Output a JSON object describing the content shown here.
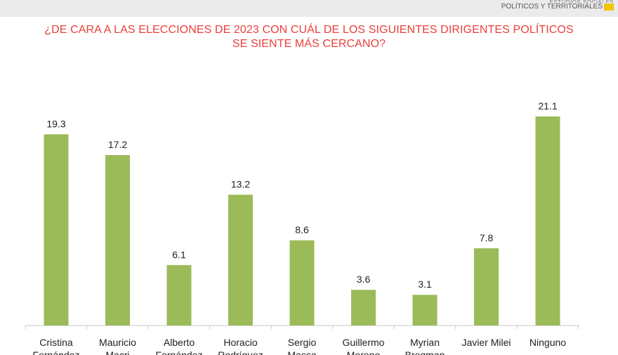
{
  "header": {
    "brand_top": "ESTUDIOS SOCIALES",
    "brand_main": "POLÍTICOS Y TERRITORIALES",
    "brand_color": "#f3c300"
  },
  "chart_data": {
    "type": "bar",
    "title_lines": [
      "¿DE CARA A LAS ELECCIONES DE 2023 CON CUÁL DE LOS SIGUIENTES DIRIGENTES POLÍTICOS",
      "SE SIENTE MÁS CERCANO?"
    ],
    "categories": [
      [
        "Cristina",
        "Fernández"
      ],
      [
        "Mauricio",
        "Macri"
      ],
      [
        "Alberto",
        "Fernández"
      ],
      [
        "Horacio",
        "Rodríguez"
      ],
      [
        "Sergio",
        "Massa"
      ],
      [
        "Guillermo",
        "Moreno"
      ],
      [
        "Myrian",
        "Bregman"
      ],
      [
        "Javier Milei"
      ],
      [
        "Ninguno"
      ]
    ],
    "values": [
      19.3,
      17.2,
      6.1,
      13.2,
      8.6,
      3.6,
      3.1,
      7.8,
      21.1
    ],
    "ylim": [
      0,
      21.1
    ],
    "bar_color": "#9bbb59",
    "title_color": "#e8403a",
    "grid": false,
    "legend": "none"
  }
}
